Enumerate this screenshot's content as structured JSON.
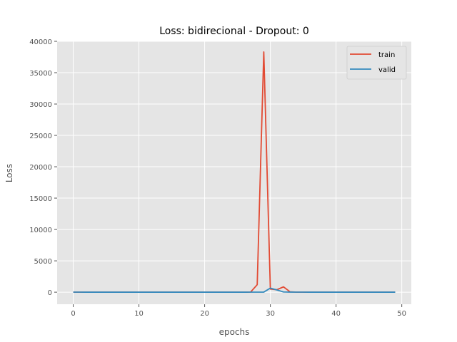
{
  "chart_data": {
    "type": "line",
    "title": "Loss: bidirecional - Dropout: 0",
    "xlabel": "epochs",
    "ylabel": "Loss",
    "xlim": [
      -2.45,
      51.45
    ],
    "ylim": [
      -1920,
      40000
    ],
    "xticks": [
      0,
      10,
      20,
      30,
      40,
      50
    ],
    "yticks": [
      0,
      5000,
      10000,
      15000,
      20000,
      25000,
      30000,
      35000,
      40000
    ],
    "grid": true,
    "legend": "top-right",
    "x": [
      0,
      1,
      2,
      3,
      4,
      5,
      6,
      7,
      8,
      9,
      10,
      11,
      12,
      13,
      14,
      15,
      16,
      17,
      18,
      19,
      20,
      21,
      22,
      23,
      24,
      25,
      26,
      27,
      28,
      29,
      30,
      31,
      32,
      33,
      34,
      35,
      36,
      37,
      38,
      39,
      40,
      41,
      42,
      43,
      44,
      45,
      46,
      47,
      48,
      49
    ],
    "series": [
      {
        "name": "train",
        "color": "#E24A33",
        "values": [
          20,
          10,
          8,
          6,
          6,
          5,
          5,
          5,
          5,
          5,
          5,
          5,
          5,
          5,
          5,
          5,
          5,
          5,
          5,
          5,
          5,
          5,
          5,
          5,
          5,
          5,
          5,
          30,
          1200,
          38300,
          500,
          400,
          850,
          60,
          10,
          8,
          6,
          5,
          5,
          5,
          5,
          5,
          5,
          5,
          5,
          5,
          5,
          5,
          5,
          5
        ]
      },
      {
        "name": "valid",
        "color": "#348ABD",
        "values": [
          10,
          8,
          6,
          6,
          5,
          5,
          5,
          5,
          5,
          5,
          5,
          5,
          5,
          5,
          5,
          5,
          5,
          5,
          5,
          5,
          5,
          5,
          5,
          5,
          5,
          5,
          5,
          10,
          15,
          20,
          650,
          350,
          40,
          20,
          10,
          8,
          6,
          5,
          5,
          5,
          5,
          5,
          5,
          5,
          5,
          5,
          5,
          5,
          5,
          5
        ]
      }
    ]
  }
}
